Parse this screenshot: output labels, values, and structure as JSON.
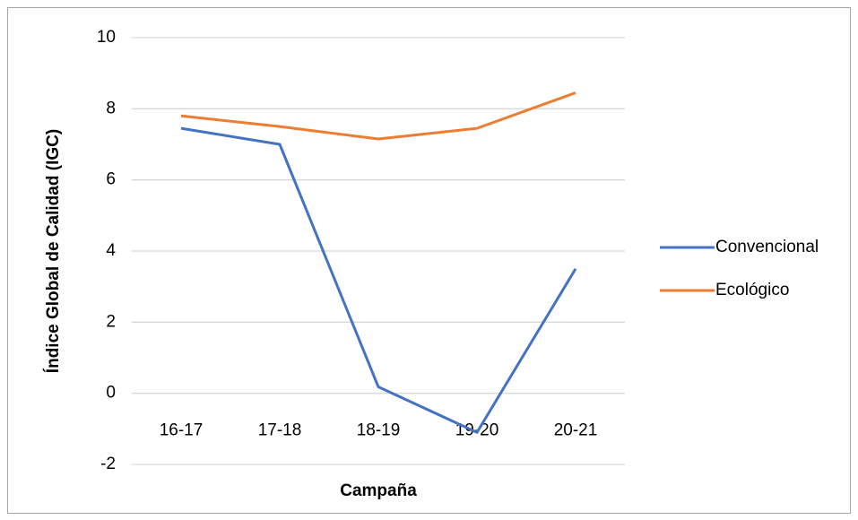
{
  "chart_data": {
    "type": "line",
    "x_label": "Campaña",
    "y_label": "Índice Global de Calidad (IGC)",
    "categories": [
      "16-17",
      "17-18",
      "18-19",
      "19-20",
      "20-21"
    ],
    "series": [
      {
        "name": "Convencional",
        "color": "#4472c4",
        "values": [
          7.45,
          7.0,
          0.18,
          -1.1,
          3.5
        ]
      },
      {
        "name": "Ecológico",
        "color": "#ed7d31",
        "values": [
          7.8,
          7.5,
          7.15,
          7.45,
          8.45
        ]
      }
    ],
    "ylim": [
      -2,
      10
    ],
    "yticks": [
      -2,
      0,
      2,
      4,
      6,
      8,
      10
    ],
    "grid": true,
    "legend": "right"
  }
}
